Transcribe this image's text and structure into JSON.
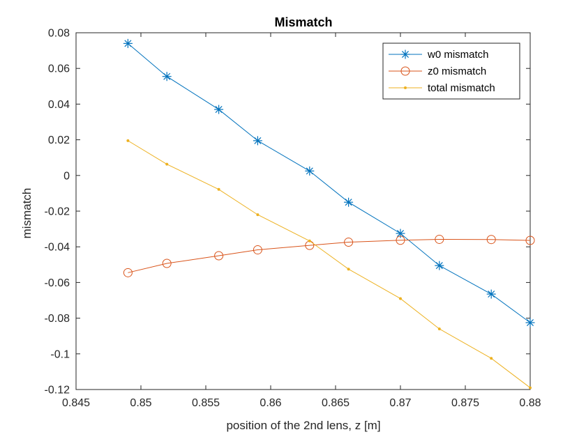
{
  "chart_data": {
    "type": "line",
    "title": "Mismatch",
    "xlabel": "position of the 2nd lens, z [m]",
    "ylabel": "mismatch",
    "xlim": [
      0.845,
      0.88
    ],
    "ylim": [
      -0.12,
      0.08
    ],
    "xticks": [
      0.845,
      0.85,
      0.855,
      0.86,
      0.865,
      0.87,
      0.875,
      0.88
    ],
    "xtick_labels": [
      "0.845",
      "0.85",
      "0.855",
      "0.86",
      "0.865",
      "0.87",
      "0.875",
      "0.88"
    ],
    "yticks": [
      -0.12,
      -0.1,
      -0.08,
      -0.06,
      -0.04,
      -0.02,
      0,
      0.02,
      0.04,
      0.06,
      0.08
    ],
    "ytick_labels": [
      "-0.12",
      "-0.1",
      "-0.08",
      "-0.06",
      "-0.04",
      "-0.02",
      "0",
      "0.02",
      "0.04",
      "0.06",
      "0.08"
    ],
    "grid": false,
    "legend_position": "top-right",
    "x": [
      0.849,
      0.852,
      0.856,
      0.859,
      0.863,
      0.866,
      0.87,
      0.873,
      0.877,
      0.88
    ],
    "series": [
      {
        "name": "w0 mismatch",
        "color": "#0072BD",
        "marker": "asterisk",
        "values": [
          0.074,
          0.0555,
          0.037,
          0.0195,
          0.0025,
          -0.015,
          -0.0325,
          -0.0505,
          -0.0665,
          -0.0825
        ]
      },
      {
        "name": "z0 mismatch",
        "color": "#D95319",
        "marker": "circle",
        "values": [
          -0.0545,
          -0.0493,
          -0.045,
          -0.0417,
          -0.0392,
          -0.0374,
          -0.0363,
          -0.0358,
          -0.0359,
          -0.0364
        ]
      },
      {
        "name": "total mismatch",
        "color": "#EDB120",
        "marker": "dot",
        "values": [
          0.0195,
          0.0063,
          -0.0078,
          -0.022,
          -0.0367,
          -0.0525,
          -0.069,
          -0.086,
          -0.1025,
          -0.119
        ]
      }
    ]
  }
}
